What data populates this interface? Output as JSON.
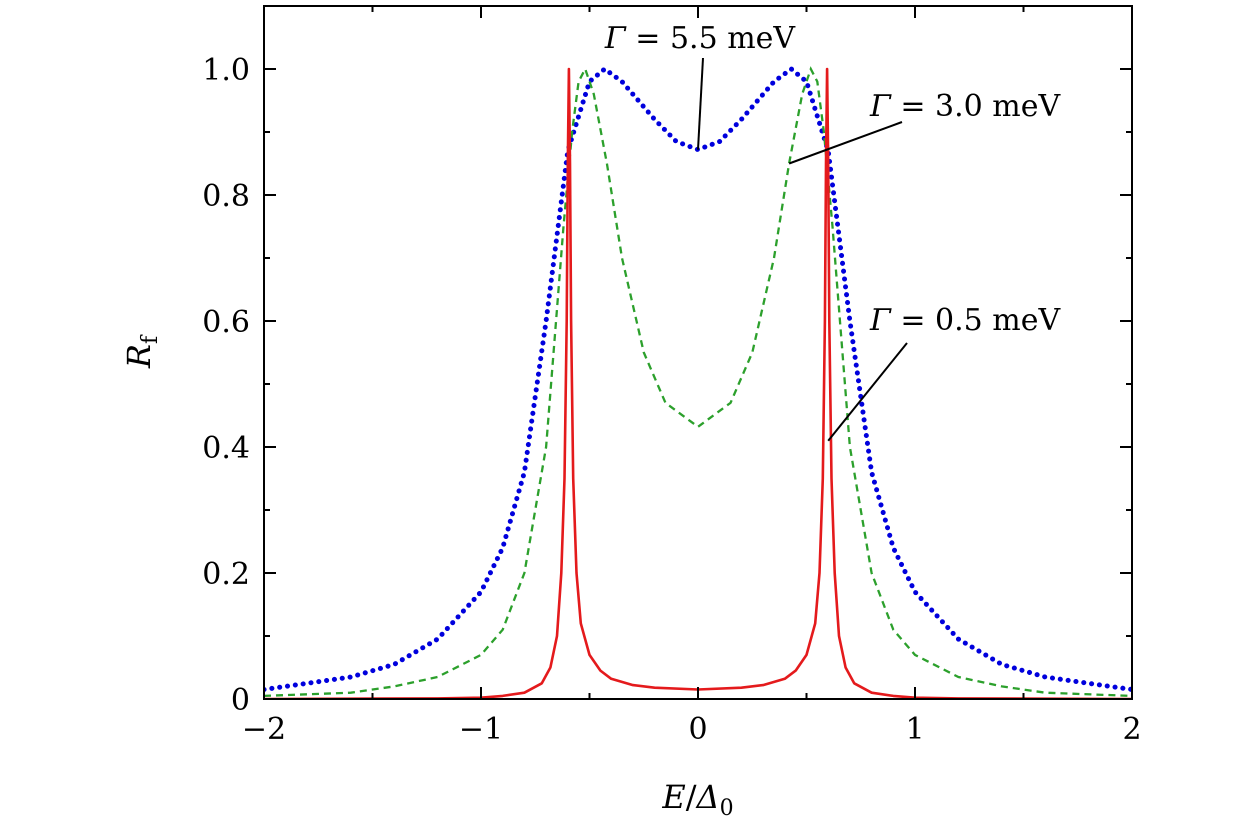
{
  "chart_data": {
    "type": "line",
    "title": "",
    "xlabel": {
      "main": "E",
      "sep": "/",
      "sym": "Δ",
      "sub": "0"
    },
    "ylabel": {
      "main": "R",
      "sub": "f"
    },
    "xlim": [
      -2,
      2
    ],
    "ylim": [
      0,
      1.1
    ],
    "x_ticks": [
      -2,
      -1,
      0,
      1,
      2
    ],
    "x_tick_labels": [
      "−2",
      "−1",
      "0",
      "1",
      "2"
    ],
    "y_ticks": [
      0,
      0.2,
      0.4,
      0.6,
      0.8,
      1.0
    ],
    "y_tick_labels": [
      "0",
      "0.2",
      "0.4",
      "0.6",
      "0.8",
      "1.0"
    ],
    "grid": false,
    "legend": "none",
    "series": [
      {
        "color": "#0000dd",
        "style": "dotted",
        "gamma_meV": 5.5,
        "points": [
          [
            -2,
            0.015
          ],
          [
            -1.8,
            0.025
          ],
          [
            -1.6,
            0.035
          ],
          [
            -1.4,
            0.055
          ],
          [
            -1.2,
            0.095
          ],
          [
            -1.0,
            0.17
          ],
          [
            -0.9,
            0.24
          ],
          [
            -0.8,
            0.36
          ],
          [
            -0.7,
            0.6
          ],
          [
            -0.6,
            0.87
          ],
          [
            -0.5,
            0.98
          ],
          [
            -0.43,
            1.0
          ],
          [
            -0.35,
            0.98
          ],
          [
            -0.2,
            0.92
          ],
          [
            -0.1,
            0.885
          ],
          [
            0,
            0.872
          ],
          [
            0.1,
            0.885
          ],
          [
            0.2,
            0.92
          ],
          [
            0.35,
            0.98
          ],
          [
            0.43,
            1.0
          ],
          [
            0.5,
            0.98
          ],
          [
            0.6,
            0.87
          ],
          [
            0.7,
            0.6
          ],
          [
            0.8,
            0.36
          ],
          [
            0.9,
            0.24
          ],
          [
            1.0,
            0.17
          ],
          [
            1.2,
            0.095
          ],
          [
            1.4,
            0.055
          ],
          [
            1.6,
            0.035
          ],
          [
            1.8,
            0.025
          ],
          [
            2,
            0.015
          ]
        ]
      },
      {
        "color": "#2ca02c",
        "style": "dashed",
        "gamma_meV": 3.0,
        "points": [
          [
            -2,
            0.005
          ],
          [
            -1.6,
            0.01
          ],
          [
            -1.4,
            0.02
          ],
          [
            -1.2,
            0.035
          ],
          [
            -1.0,
            0.07
          ],
          [
            -0.9,
            0.11
          ],
          [
            -0.8,
            0.2
          ],
          [
            -0.7,
            0.4
          ],
          [
            -0.62,
            0.75
          ],
          [
            -0.58,
            0.9
          ],
          [
            -0.55,
            0.98
          ],
          [
            -0.52,
            1.0
          ],
          [
            -0.48,
            0.96
          ],
          [
            -0.42,
            0.85
          ],
          [
            -0.35,
            0.7
          ],
          [
            -0.25,
            0.55
          ],
          [
            -0.15,
            0.47
          ],
          [
            0,
            0.432
          ],
          [
            0.15,
            0.47
          ],
          [
            0.25,
            0.55
          ],
          [
            0.35,
            0.7
          ],
          [
            0.42,
            0.85
          ],
          [
            0.48,
            0.96
          ],
          [
            0.52,
            1.0
          ],
          [
            0.55,
            0.98
          ],
          [
            0.58,
            0.9
          ],
          [
            0.62,
            0.75
          ],
          [
            0.7,
            0.4
          ],
          [
            0.8,
            0.2
          ],
          [
            0.9,
            0.11
          ],
          [
            1.0,
            0.07
          ],
          [
            1.2,
            0.035
          ],
          [
            1.4,
            0.02
          ],
          [
            1.6,
            0.01
          ],
          [
            2,
            0.005
          ]
        ]
      },
      {
        "color": "#e41a1c",
        "style": "solid",
        "gamma_meV": 0.5,
        "points": [
          [
            -2,
            0.0
          ],
          [
            -1.2,
            0.001
          ],
          [
            -1.0,
            0.002
          ],
          [
            -0.9,
            0.005
          ],
          [
            -0.8,
            0.01
          ],
          [
            -0.72,
            0.025
          ],
          [
            -0.68,
            0.05
          ],
          [
            -0.65,
            0.1
          ],
          [
            -0.63,
            0.2
          ],
          [
            -0.615,
            0.35
          ],
          [
            -0.605,
            0.6
          ],
          [
            -0.6,
            0.85
          ],
          [
            -0.595,
            1.0
          ],
          [
            -0.59,
            0.85
          ],
          [
            -0.585,
            0.6
          ],
          [
            -0.575,
            0.35
          ],
          [
            -0.56,
            0.2
          ],
          [
            -0.54,
            0.12
          ],
          [
            -0.5,
            0.07
          ],
          [
            -0.45,
            0.045
          ],
          [
            -0.4,
            0.032
          ],
          [
            -0.3,
            0.022
          ],
          [
            -0.2,
            0.018
          ],
          [
            0,
            0.015
          ],
          [
            0.2,
            0.018
          ],
          [
            0.3,
            0.022
          ],
          [
            0.4,
            0.032
          ],
          [
            0.45,
            0.045
          ],
          [
            0.5,
            0.07
          ],
          [
            0.54,
            0.12
          ],
          [
            0.56,
            0.2
          ],
          [
            0.575,
            0.35
          ],
          [
            0.585,
            0.6
          ],
          [
            0.59,
            0.85
          ],
          [
            0.595,
            1.0
          ],
          [
            0.6,
            0.85
          ],
          [
            0.605,
            0.6
          ],
          [
            0.615,
            0.35
          ],
          [
            0.63,
            0.2
          ],
          [
            0.65,
            0.1
          ],
          [
            0.68,
            0.05
          ],
          [
            0.72,
            0.025
          ],
          [
            0.8,
            0.01
          ],
          [
            0.9,
            0.005
          ],
          [
            1.0,
            0.002
          ],
          [
            1.2,
            0.001
          ],
          [
            2,
            0.0
          ]
        ]
      }
    ],
    "annotations": [
      {
        "greek": "Γ",
        "eq": " = ",
        "value": "5.5",
        "unit": " meV",
        "target": [
          0,
          0.872
        ]
      },
      {
        "greek": "Γ",
        "eq": " = ",
        "value": "3.0",
        "unit": " meV",
        "target": [
          0.42,
          0.85
        ]
      },
      {
        "greek": "Γ",
        "eq": " = ",
        "value": "0.5",
        "unit": " meV",
        "target": [
          0.6,
          0.41
        ]
      }
    ]
  }
}
